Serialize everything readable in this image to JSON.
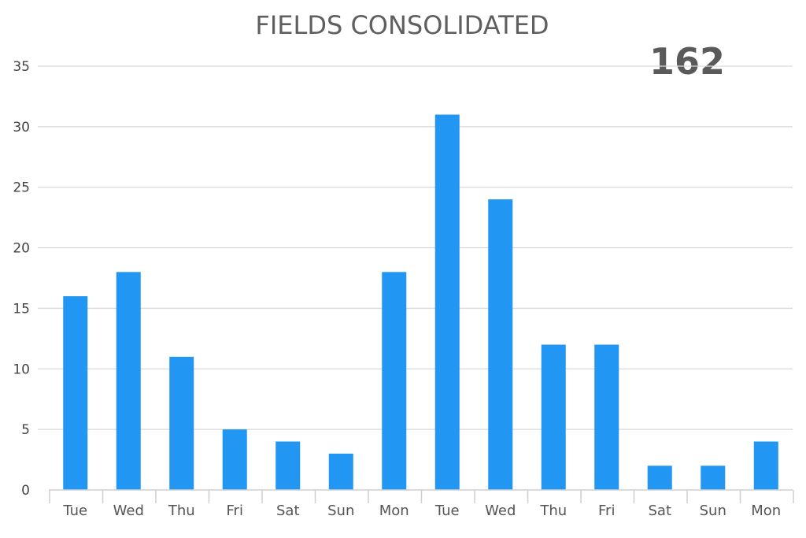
{
  "header": {
    "title": "FIELDS CONSOLIDATED",
    "total": "162"
  },
  "colors": {
    "bar": "#2196f3",
    "grid": "#d9d9d9",
    "axis": "#cfcfcf"
  },
  "chart_data": {
    "type": "bar",
    "title": "FIELDS CONSOLIDATED",
    "xlabel": "",
    "ylabel": "",
    "categories": [
      "Tue",
      "Wed",
      "Thu",
      "Fri",
      "Sat",
      "Sun",
      "Mon",
      "Tue",
      "Wed",
      "Thu",
      "Fri",
      "Sat",
      "Sun",
      "Mon"
    ],
    "values": [
      16,
      18,
      11,
      5,
      4,
      3,
      18,
      31,
      24,
      12,
      12,
      2,
      2,
      4
    ],
    "ylim": [
      0,
      35
    ],
    "yticks": [
      0,
      5,
      10,
      15,
      20,
      25,
      30,
      35
    ],
    "grid": true,
    "legend": "none"
  }
}
